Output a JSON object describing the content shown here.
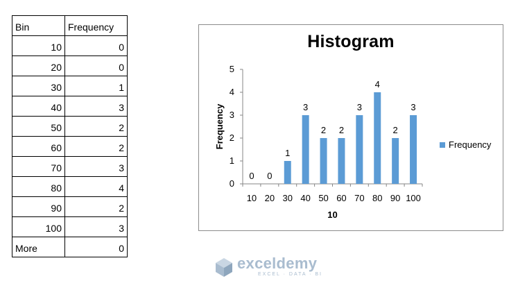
{
  "sheet": {
    "headers": [
      "Bin",
      "Frequency"
    ],
    "rows": [
      [
        "10",
        "0"
      ],
      [
        "20",
        "0"
      ],
      [
        "30",
        "1"
      ],
      [
        "40",
        "3"
      ],
      [
        "50",
        "2"
      ],
      [
        "60",
        "2"
      ],
      [
        "70",
        "3"
      ],
      [
        "80",
        "4"
      ],
      [
        "90",
        "2"
      ],
      [
        "100",
        "3"
      ],
      [
        "More",
        "0"
      ]
    ]
  },
  "chart_data": {
    "type": "bar",
    "title": "Histogram",
    "xlabel": "10",
    "ylabel": "Frequency",
    "categories": [
      "10",
      "20",
      "30",
      "40",
      "50",
      "60",
      "70",
      "80",
      "90",
      "100"
    ],
    "series": [
      {
        "name": "Frequency",
        "values": [
          0,
          0,
          1,
          3,
          2,
          2,
          3,
          4,
          2,
          3
        ]
      }
    ],
    "ylim": [
      0,
      5
    ],
    "yticks": [
      "0",
      "1",
      "2",
      "3",
      "4",
      "5"
    ],
    "data_labels": true,
    "grid": false,
    "legend": "right",
    "bar_color": "#5b9bd5"
  },
  "watermark": {
    "name": "exceldemy",
    "tagline": "EXCEL · DATA · BI"
  }
}
